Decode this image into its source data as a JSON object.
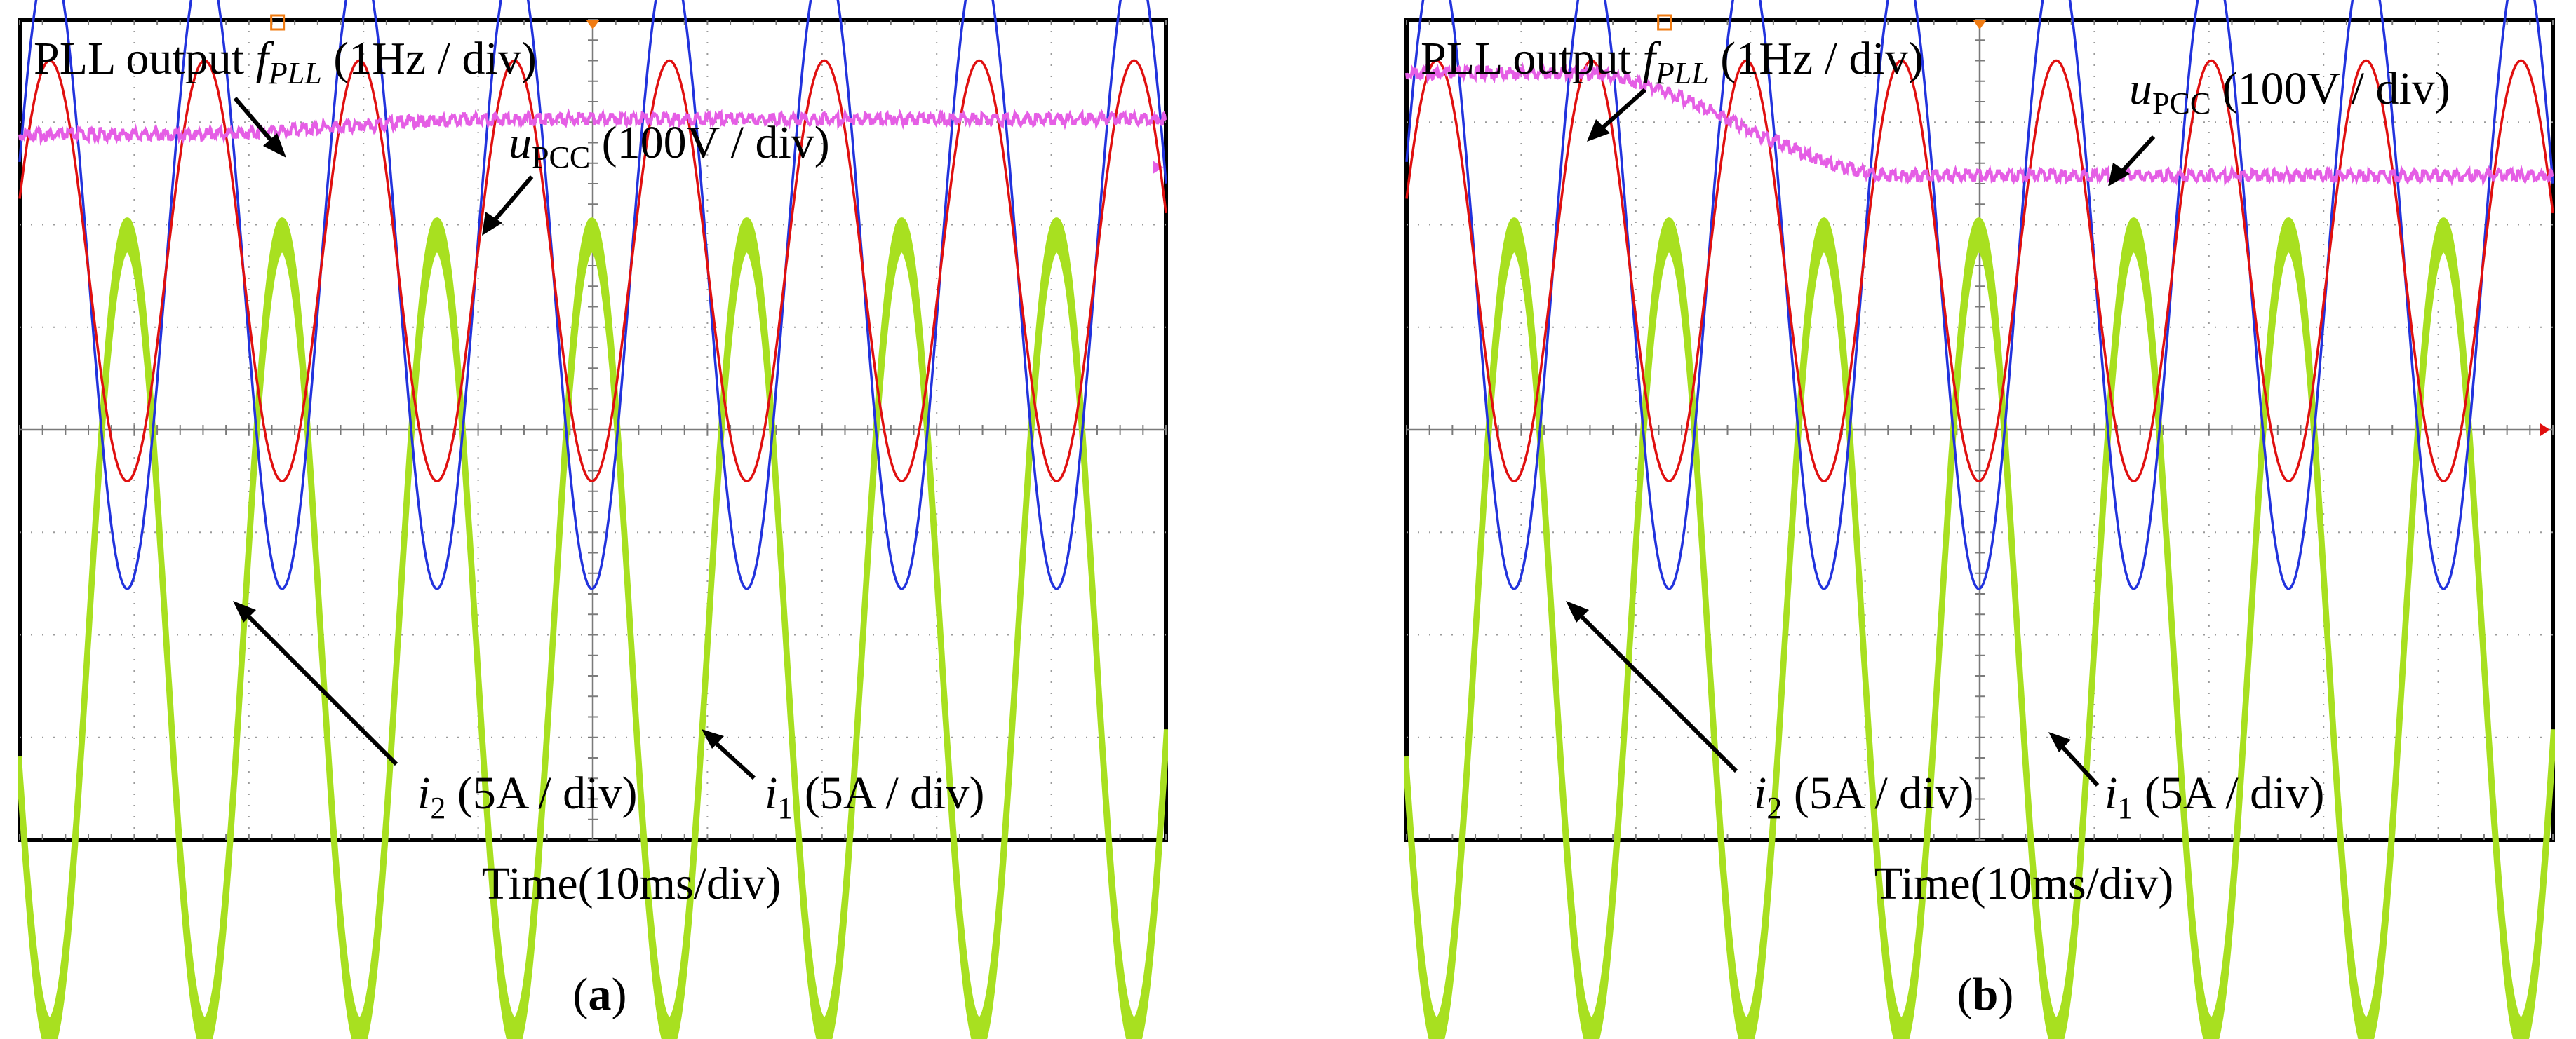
{
  "figure": {
    "panel_a_label": "a",
    "panel_b_label": "b"
  },
  "chart_data": [
    {
      "type": "line",
      "panel": "a",
      "title": "",
      "xlabel": "Time(10ms/div)",
      "x_div_ms": 10,
      "grid": true,
      "labels": {
        "pll_main": "PLL output ",
        "pll_symbol": "f",
        "pll_sub": "PLL",
        "pll_scale": " (1Hz / div)",
        "upcc_symbol": "u",
        "upcc_sub": "PCC",
        "upcc_scale": " (100V / div)",
        "i2_symbol": "i",
        "i2_sub": "2",
        "i2_scale": " (5A / div)",
        "i1_symbol": "i",
        "i1_sub": "1",
        "i1_scale": " (5A / div)"
      },
      "series": [
        {
          "name": "PLL output f_PLL",
          "color": "#e55ee5",
          "scale": "1Hz / div",
          "kind": "step",
          "level_start_div": 2.85,
          "level_end_div": 3.0,
          "transition_start_div": 1.3,
          "transition_end_div": 4.2
        },
        {
          "name": "u_PCC",
          "color": "#2233dd",
          "scale": "100V / div",
          "kind": "sine",
          "amplitude_div": 3.1,
          "cycles": 7.4,
          "phase_deg": 0
        },
        {
          "name": "i2",
          "color": "#e01010",
          "scale": "5A / div",
          "kind": "sine",
          "amplitude_div": 2.05,
          "cycles": 7.4,
          "phase_deg": 0
        },
        {
          "name": "i1",
          "color": "#a8e020",
          "scale": "5A / div",
          "kind": "sine_band",
          "amplitude_div": 3.9,
          "cycles": 7.4,
          "phase_deg": 180,
          "band_div": 0.3
        }
      ]
    },
    {
      "type": "line",
      "panel": "b",
      "title": "",
      "xlabel": "Time(10ms/div)",
      "x_div_ms": 10,
      "grid": true,
      "labels": {
        "pll_main": "PLL output ",
        "pll_symbol": "f",
        "pll_sub": "PLL",
        "pll_scale": " (1Hz / div)",
        "upcc_symbol": "u",
        "upcc_sub": "PCC",
        "upcc_scale": " (100V / div)",
        "i2_symbol": "i",
        "i2_sub": "2",
        "i2_scale": " (5A / div)",
        "i1_symbol": "i",
        "i1_sub": "1",
        "i1_scale": " (5A / div)"
      },
      "series": [
        {
          "name": "PLL output f_PLL",
          "color": "#e55ee5",
          "scale": "1Hz / div",
          "kind": "step",
          "level_start_div": 3.45,
          "level_end_div": 2.45,
          "transition_start_div": 1.5,
          "transition_end_div": 4.3
        },
        {
          "name": "u_PCC",
          "color": "#2233dd",
          "scale": "100V / div",
          "kind": "sine",
          "amplitude_div": 3.1,
          "cycles": 7.4,
          "phase_deg": 0
        },
        {
          "name": "i2",
          "color": "#e01010",
          "scale": "5A / div",
          "kind": "sine",
          "amplitude_div": 2.05,
          "cycles": 7.4,
          "phase_deg": 0
        },
        {
          "name": "i1",
          "color": "#a8e020",
          "scale": "5A / div",
          "kind": "sine_band",
          "amplitude_div": 3.9,
          "cycles": 7.4,
          "phase_deg": 180,
          "band_div": 0.3
        }
      ]
    }
  ]
}
